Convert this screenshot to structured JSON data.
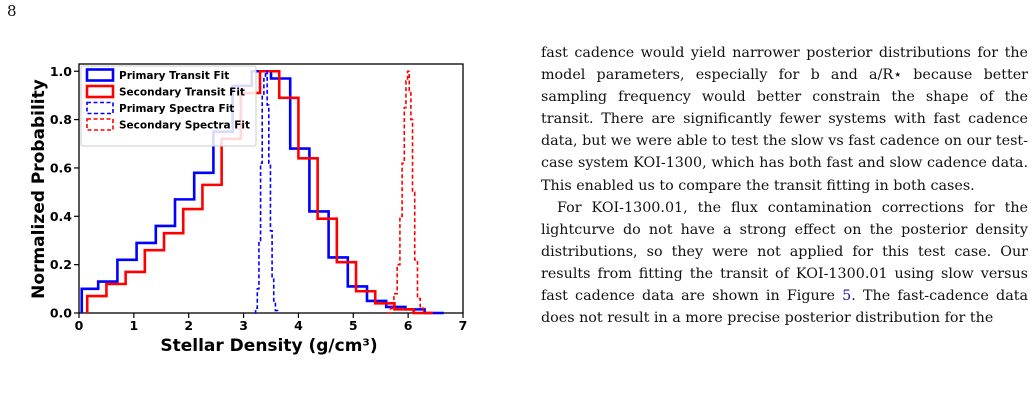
{
  "page": {
    "number": "8"
  },
  "chart_data": {
    "type": "histogram",
    "xlabel": "Stellar Density (g/cm³)",
    "ylabel": "Normalized Probability",
    "xlim": [
      0,
      7
    ],
    "ylim": [
      0,
      1.03
    ],
    "xticks": [
      0,
      1,
      2,
      3,
      4,
      5,
      6,
      7
    ],
    "yticks": [
      0.0,
      0.2,
      0.4,
      0.6,
      0.8,
      1.0
    ],
    "ytick_labels": [
      "0.0",
      "0.2",
      "0.4",
      "0.6",
      "0.8",
      "1.0"
    ],
    "grid": false,
    "legend_position": "top-left",
    "series": [
      {
        "name": "Primary Transit Fit",
        "style": "solid-step",
        "color": "#0000ff",
        "edges": [
          0.05,
          0.35,
          0.7,
          1.05,
          1.4,
          1.75,
          2.1,
          2.45,
          2.8,
          3.15,
          3.5,
          3.85,
          4.2,
          4.55,
          4.9,
          5.25,
          5.6,
          5.95,
          6.3,
          6.65
        ],
        "values": [
          0.1,
          0.13,
          0.22,
          0.29,
          0.36,
          0.47,
          0.58,
          0.75,
          0.94,
          1.0,
          0.97,
          0.68,
          0.42,
          0.23,
          0.11,
          0.05,
          0.025,
          0.015,
          0.0
        ]
      },
      {
        "name": "Secondary Transit Fit",
        "style": "solid-step",
        "color": "#ff0000",
        "edges": [
          0.15,
          0.5,
          0.85,
          1.2,
          1.55,
          1.9,
          2.25,
          2.6,
          2.95,
          3.3,
          3.65,
          4.0,
          4.35,
          4.7,
          5.05,
          5.4,
          5.75,
          6.1,
          6.45
        ],
        "values": [
          0.07,
          0.12,
          0.17,
          0.26,
          0.33,
          0.43,
          0.53,
          0.72,
          0.91,
          1.0,
          0.89,
          0.64,
          0.39,
          0.21,
          0.09,
          0.04,
          0.015,
          0.0
        ]
      },
      {
        "name": "Primary Spectra Fit",
        "style": "dashed-step",
        "color": "#0000ff",
        "x": [
          3.2,
          3.22,
          3.25,
          3.28,
          3.31,
          3.34,
          3.37,
          3.4,
          3.43,
          3.46,
          3.49,
          3.52,
          3.55,
          3.58,
          3.62
        ],
        "y": [
          0.0,
          0.02,
          0.1,
          0.3,
          0.62,
          0.9,
          0.98,
          1.0,
          0.86,
          0.62,
          0.34,
          0.14,
          0.05,
          0.01,
          0.0
        ]
      },
      {
        "name": "Secondary Spectra Fit",
        "style": "dashed-step",
        "color": "#ff0000",
        "x": [
          5.62,
          5.68,
          5.74,
          5.8,
          5.85,
          5.89,
          5.93,
          5.96,
          5.99,
          6.02,
          6.05,
          6.08,
          6.12,
          6.17,
          6.22,
          6.28
        ],
        "y": [
          0.0,
          0.02,
          0.08,
          0.2,
          0.4,
          0.62,
          0.85,
          0.96,
          1.0,
          0.92,
          0.8,
          0.5,
          0.22,
          0.06,
          0.02,
          0.0
        ]
      }
    ]
  },
  "text": {
    "paragraph_1": "fast cadence would yield narrower posterior distributions for the model parameters, especially for b and a/R⋆ because better sampling frequency would better constrain the shape of the transit. There are significantly fewer systems with fast cadence data, but we were able to test the slow vs fast cadence on our test-case system KOI-1300, which has both fast and slow cadence data. This enabled us to compare the transit fitting in both cases.",
    "paragraph_2_before_ref": "For KOI-1300.01, the flux contamination corrections for the lightcurve do not have a strong effect on the posterior density distributions, so they were not applied for this test case. Our results from fitting the transit of KOI-1300.01 using slow versus fast cadence data are shown in Figure ",
    "paragraph_2_ref": "5",
    "paragraph_2_after_ref": ". The fast-cadence data does not result in a more precise posterior distribution for the"
  }
}
